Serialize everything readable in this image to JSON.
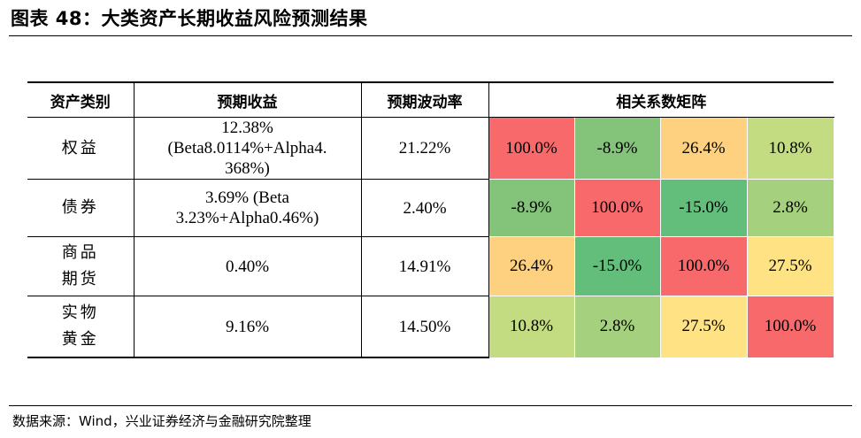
{
  "title": "图表 48：大类资产长期收益风险预测结果",
  "headers": [
    "资产类别",
    "预期收益",
    "预期波动率",
    "相关系数矩阵"
  ],
  "rows": [
    {
      "asset": "权益",
      "ret": "12.38% (Beta8.0114%+Alpha4. 368%)",
      "vol": "21.22%",
      "corr": [
        "100.0%",
        "-8.9%",
        "26.4%",
        "10.8%"
      ]
    },
    {
      "asset": "债券",
      "ret": "3.69% (Beta 3.23%+Alpha0.46%)",
      "vol": "2.40%",
      "corr": [
        "-8.9%",
        "100.0%",
        "-15.0%",
        "2.8%"
      ]
    },
    {
      "asset": "商品 期货",
      "ret": "0.40%",
      "vol": "14.91%",
      "corr": [
        "26.4%",
        "-15.0%",
        "100.0%",
        "27.5%"
      ]
    },
    {
      "asset": "实物 黄金",
      "ret": "9.16%",
      "vol": "14.50%",
      "corr": [
        "10.8%",
        "2.8%",
        "27.5%",
        "100.0%"
      ]
    }
  ],
  "heatmap_colors": {
    "100.0%": "#f8696b",
    "-8.9%": "#83c37a",
    "26.4%": "#fdd17f",
    "10.8%": "#c3db81",
    "-15.0%": "#63be7b",
    "2.8%": "#a5d17e",
    "27.5%": "#ffe284"
  },
  "source": "数据来源：Wind，兴业证券经济与金融研究院整理"
}
